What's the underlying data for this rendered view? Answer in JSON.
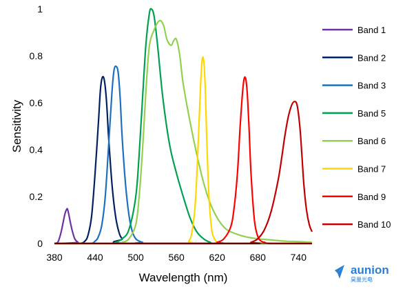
{
  "chart_data": {
    "type": "line",
    "xlabel": "Wavelength (nm)",
    "ylabel": "Sensitivity",
    "xlim": [
      380,
      760
    ],
    "ylim": [
      0,
      1
    ],
    "xticks": [
      380,
      440,
      500,
      560,
      620,
      680,
      740
    ],
    "xtick_labels": [
      "380",
      "440",
      "500",
      "560",
      "620",
      "680",
      "740"
    ],
    "yticks": [
      0,
      0.2,
      0.4,
      0.6,
      0.8,
      1
    ],
    "ytick_labels": [
      "0",
      "0.2",
      "0.4",
      "0.6",
      "0.8",
      "1"
    ],
    "grid": false,
    "legend_position": "right",
    "series": [
      {
        "name": "Band 1",
        "color": "#7030a0",
        "x": [
          380,
          385,
          390,
          395,
          398,
          400,
          405,
          410,
          415,
          420,
          760
        ],
        "y": [
          0,
          0.005,
          0.05,
          0.12,
          0.145,
          0.14,
          0.07,
          0.02,
          0.005,
          0,
          0
        ]
      },
      {
        "name": "Band 2",
        "color": "#002060",
        "x": [
          380,
          415,
          425,
          430,
          435,
          440,
          445,
          448,
          451,
          454,
          457,
          460,
          465,
          470,
          475,
          480,
          490,
          760
        ],
        "y": [
          0,
          0,
          0.01,
          0.04,
          0.12,
          0.3,
          0.52,
          0.66,
          0.71,
          0.69,
          0.6,
          0.45,
          0.25,
          0.12,
          0.05,
          0.02,
          0,
          0
        ]
      },
      {
        "name": "Band 3",
        "color": "#1f6fbf",
        "x": [
          380,
          430,
          440,
          445,
          450,
          455,
          460,
          465,
          468,
          471,
          474,
          477,
          480,
          485,
          490,
          495,
          500,
          505,
          510,
          520,
          760
        ],
        "y": [
          0,
          0,
          0.01,
          0.03,
          0.08,
          0.2,
          0.42,
          0.65,
          0.74,
          0.755,
          0.73,
          0.62,
          0.45,
          0.25,
          0.12,
          0.05,
          0.02,
          0.01,
          0.005,
          0,
          0
        ]
      },
      {
        "name": "Band 5",
        "color": "#00a050",
        "x": [
          380,
          460,
          470,
          480,
          490,
          500,
          505,
          510,
          515,
          520,
          523,
          527,
          532,
          540,
          550,
          560,
          570,
          580,
          590,
          600,
          610,
          620,
          760
        ],
        "y": [
          0,
          0,
          0.005,
          0.02,
          0.06,
          0.2,
          0.38,
          0.62,
          0.85,
          0.98,
          1.0,
          0.97,
          0.85,
          0.62,
          0.42,
          0.3,
          0.2,
          0.11,
          0.05,
          0.02,
          0.005,
          0,
          0
        ]
      },
      {
        "name": "Band 6",
        "color": "#92d050",
        "x": [
          380,
          470,
          480,
          490,
          500,
          505,
          510,
          515,
          520,
          527,
          535,
          541,
          546,
          552,
          556,
          560,
          565,
          570,
          580,
          590,
          600,
          610,
          620,
          630,
          640,
          660,
          680,
          700,
          720,
          740,
          760
        ],
        "y": [
          0,
          0,
          0.005,
          0.02,
          0.08,
          0.2,
          0.4,
          0.65,
          0.84,
          0.91,
          0.95,
          0.93,
          0.87,
          0.845,
          0.865,
          0.87,
          0.8,
          0.68,
          0.52,
          0.38,
          0.26,
          0.17,
          0.11,
          0.07,
          0.05,
          0.03,
          0.02,
          0.015,
          0.01,
          0.008,
          0.005
        ]
      },
      {
        "name": "Band 7",
        "color": "#ffd700",
        "x": [
          380,
          570,
          578,
          583,
          588,
          592,
          596,
          599,
          602,
          605,
          608,
          612,
          616,
          620,
          625,
          760
        ],
        "y": [
          0,
          0,
          0.01,
          0.05,
          0.18,
          0.42,
          0.7,
          0.795,
          0.7,
          0.42,
          0.2,
          0.06,
          0.02,
          0.005,
          0,
          0
        ]
      },
      {
        "name": "Band 9",
        "color": "#ff0000",
        "x": [
          380,
          610,
          620,
          630,
          640,
          645,
          650,
          654,
          658,
          661,
          664,
          667,
          670,
          675,
          680,
          685,
          690,
          700,
          760
        ],
        "y": [
          0,
          0,
          0.005,
          0.02,
          0.07,
          0.15,
          0.3,
          0.5,
          0.66,
          0.71,
          0.66,
          0.5,
          0.3,
          0.1,
          0.03,
          0.01,
          0.005,
          0,
          0
        ]
      },
      {
        "name": "Band 10",
        "color": "#c00000",
        "x": [
          380,
          660,
          670,
          680,
          690,
          700,
          710,
          715,
          720,
          725,
          730,
          734,
          738,
          742,
          745,
          748,
          752,
          756,
          760
        ],
        "y": [
          0,
          0,
          0.005,
          0.02,
          0.06,
          0.14,
          0.27,
          0.36,
          0.46,
          0.54,
          0.59,
          0.605,
          0.59,
          0.5,
          0.38,
          0.25,
          0.14,
          0.08,
          0.05
        ]
      }
    ]
  },
  "watermark": {
    "brand": "aunion",
    "sub": "昊量光电",
    "color": "#2a7fd4"
  }
}
